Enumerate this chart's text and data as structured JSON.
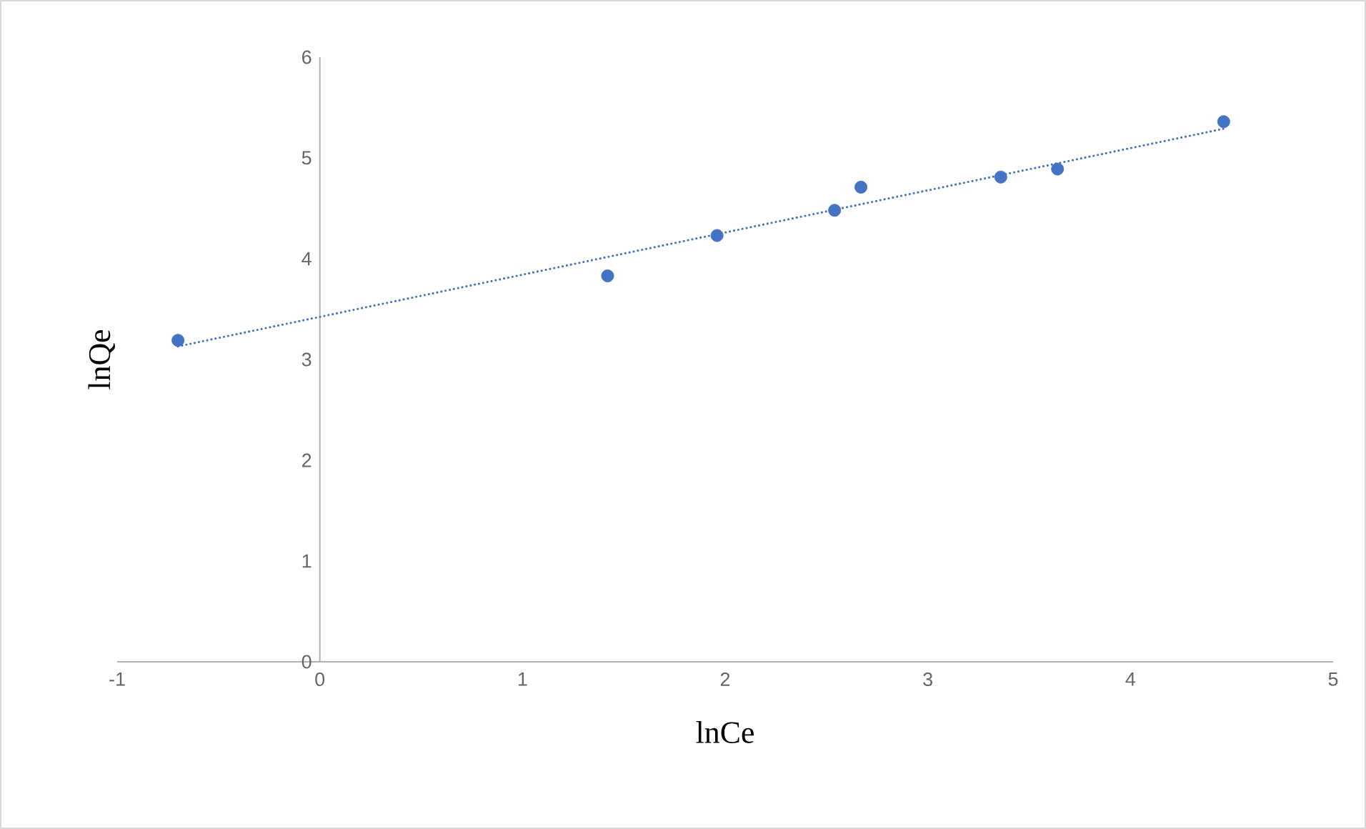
{
  "chart_data": {
    "type": "scatter",
    "xlabel": "lnCe",
    "ylabel": "lnQe",
    "xlim": [
      -1,
      5
    ],
    "ylim": [
      0,
      6
    ],
    "xticks": [
      -1,
      0,
      1,
      2,
      3,
      4,
      5
    ],
    "yticks": [
      0,
      1,
      2,
      3,
      4,
      5,
      6
    ],
    "series": [
      {
        "type": "scatter",
        "color": "#4472c4",
        "marker": "circle",
        "x": [
          -0.7,
          1.42,
          1.96,
          2.54,
          2.67,
          3.36,
          3.64,
          4.46
        ],
        "values": [
          3.19,
          3.83,
          4.23,
          4.48,
          4.71,
          4.81,
          4.89,
          5.36
        ]
      },
      {
        "type": "line",
        "color": "#4472c4",
        "marker": "none",
        "line_style": "dotted",
        "x": [
          -0.7,
          4.46
        ],
        "values": [
          3.13,
          5.29
        ]
      }
    ]
  }
}
